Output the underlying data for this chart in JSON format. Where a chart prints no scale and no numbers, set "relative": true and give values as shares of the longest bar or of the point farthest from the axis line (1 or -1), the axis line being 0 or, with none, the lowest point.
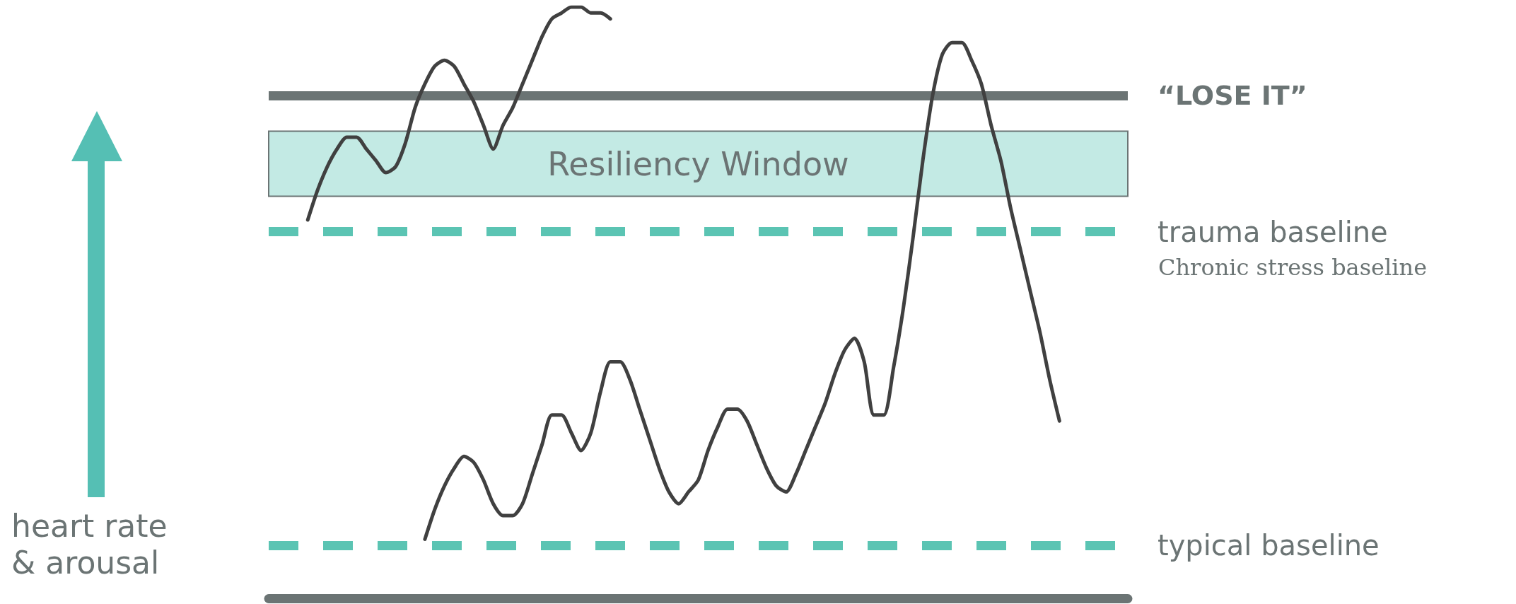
{
  "chart_data": {
    "type": "line",
    "relative": true,
    "marker": "none",
    "ylabel": "heart rate & arousal",
    "categories": [
      null,
      null,
      null,
      null,
      null,
      null,
      null,
      null,
      null,
      null,
      null,
      null,
      null,
      null,
      null,
      null,
      null,
      null,
      null,
      null,
      null,
      null,
      null,
      null,
      null,
      null,
      null,
      null,
      null,
      null,
      null,
      null,
      null,
      null,
      null,
      null,
      null,
      null,
      null,
      null,
      null,
      null,
      null,
      null,
      null,
      null,
      null,
      null,
      null,
      null,
      null,
      null,
      null,
      null,
      null,
      null,
      null,
      null,
      null,
      null,
      null,
      null,
      null,
      null,
      null,
      null,
      null,
      null,
      null,
      null,
      null,
      null,
      null,
      null,
      null,
      null,
      null,
      null,
      null,
      null,
      null,
      null,
      null,
      null,
      null,
      null,
      null,
      null,
      null
    ],
    "series": [
      {
        "color": "#404040",
        "values": [
          null,
          null,
          null,
          null,
          0.64,
          0.69,
          0.73,
          0.76,
          0.78,
          0.78,
          0.76,
          0.74,
          0.72,
          0.73,
          0.77,
          0.83,
          0.87,
          0.9,
          0.91,
          0.9,
          0.87,
          0.84,
          0.8,
          0.76,
          0.8,
          0.83,
          0.87,
          0.91,
          0.95,
          0.98,
          0.99,
          1.0,
          1.0,
          0.99,
          0.99,
          0.98,
          null,
          null,
          null,
          null,
          null,
          null,
          null,
          null,
          null,
          null,
          null,
          null,
          null,
          null,
          null,
          null,
          null,
          null,
          null,
          null,
          null,
          null,
          null,
          null,
          null,
          null,
          null,
          null,
          null,
          null,
          null,
          null,
          null,
          null,
          null,
          null,
          null,
          null,
          null,
          null,
          null,
          null,
          null,
          null,
          null,
          null,
          null,
          null,
          null,
          null,
          null,
          null,
          null
        ]
      },
      {
        "color": "#404040",
        "values": [
          null,
          null,
          null,
          null,
          null,
          null,
          null,
          null,
          null,
          null,
          null,
          null,
          null,
          null,
          null,
          null,
          0.1,
          0.15,
          0.19,
          0.22,
          0.24,
          0.23,
          0.2,
          0.16,
          0.14,
          0.14,
          0.16,
          0.21,
          0.26,
          0.31,
          0.31,
          0.28,
          0.25,
          0.28,
          0.35,
          0.4,
          0.4,
          0.37,
          0.32,
          0.27,
          0.22,
          0.18,
          0.16,
          0.18,
          0.2,
          0.25,
          0.29,
          0.32,
          0.32,
          0.3,
          0.26,
          0.22,
          0.19,
          0.18,
          0.21,
          0.25,
          0.29,
          0.33,
          0.38,
          0.42,
          0.44,
          0.4,
          0.31,
          0.31,
          0.39,
          0.49,
          0.61,
          0.74,
          0.85,
          0.92,
          0.94,
          0.94,
          0.91,
          0.87,
          0.8,
          0.74,
          0.66,
          0.59,
          0.52,
          0.45,
          0.37,
          0.3,
          null,
          null,
          null,
          null,
          null,
          null,
          null
        ]
      }
    ],
    "ref_lines": [
      {
        "axis": "y",
        "value": 0.85,
        "label": "“LOSE IT”",
        "color": "#6b7474",
        "line_style": "solid"
      },
      {
        "axis": "y",
        "value": 0.62,
        "label": "trauma baseline",
        "color": "#5bc4b3",
        "line_style": "dashed"
      },
      {
        "axis": "y",
        "value": 0.09,
        "label": "typical baseline",
        "color": "#5bc4b3",
        "line_style": "dashed"
      }
    ],
    "bands": [
      {
        "axis": "y",
        "from": 0.68,
        "to": 0.79,
        "label": "Resiliency Window",
        "color": "#c3eae4"
      }
    ],
    "annotations": [
      "Chronic stress baseline"
    ]
  }
}
